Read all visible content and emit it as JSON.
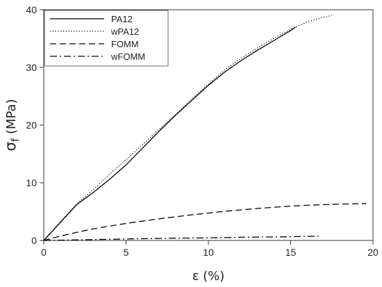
{
  "chart_data": {
    "type": "line",
    "title": "",
    "xlabel": "ε (%)",
    "ylabel_main": "σ",
    "ylabel_sub": "f",
    "ylabel_unit": " (MPa)",
    "xlim": [
      0,
      20
    ],
    "ylim": [
      0,
      40
    ],
    "xticks": [
      0,
      5,
      10,
      15,
      20
    ],
    "yticks": [
      0,
      10,
      20,
      30,
      40
    ],
    "grid": false,
    "legend_position": "top-left",
    "series": [
      {
        "name": "PA12",
        "line_style": "solid",
        "color": "#000000",
        "x": [
          0,
          1,
          2,
          3,
          4,
          5,
          6,
          7,
          8,
          9,
          10,
          11,
          12,
          13,
          14,
          15,
          15.3
        ],
        "y": [
          0,
          3.1,
          6.2,
          8.3,
          10.6,
          13.1,
          16.0,
          18.9,
          21.7,
          24.3,
          26.9,
          29.2,
          31.2,
          33.0,
          34.7,
          36.4,
          37.0
        ]
      },
      {
        "name": "wPA12",
        "line_style": "dotted",
        "color": "#000000",
        "x": [
          0,
          1,
          2,
          3,
          4,
          5,
          6,
          7,
          8,
          9,
          10,
          11,
          12,
          13,
          14,
          15,
          16,
          17,
          17.5
        ],
        "y": [
          0,
          3.2,
          6.3,
          8.8,
          11.5,
          14.0,
          16.6,
          19.2,
          21.8,
          24.5,
          27.1,
          29.6,
          31.6,
          33.4,
          35.1,
          36.6,
          37.9,
          38.7,
          39.0
        ]
      },
      {
        "name": "FOMM",
        "line_style": "dashed",
        "color": "#000000",
        "x": [
          0,
          1,
          2,
          3,
          4,
          5,
          6,
          7,
          8,
          9,
          10,
          11,
          12,
          13,
          14,
          15,
          16,
          17,
          18,
          19,
          19.6
        ],
        "y": [
          0,
          0.75,
          1.4,
          2.0,
          2.5,
          2.95,
          3.35,
          3.75,
          4.1,
          4.45,
          4.75,
          5.05,
          5.3,
          5.55,
          5.75,
          5.95,
          6.1,
          6.2,
          6.3,
          6.35,
          6.4
        ]
      },
      {
        "name": "wFOMM",
        "line_style": "dash-dot",
        "color": "#000000",
        "x": [
          0,
          2,
          4,
          6,
          8,
          10,
          12,
          14,
          16,
          16.8
        ],
        "y": [
          0,
          0.1,
          0.2,
          0.3,
          0.4,
          0.45,
          0.55,
          0.6,
          0.7,
          0.75
        ]
      }
    ]
  }
}
